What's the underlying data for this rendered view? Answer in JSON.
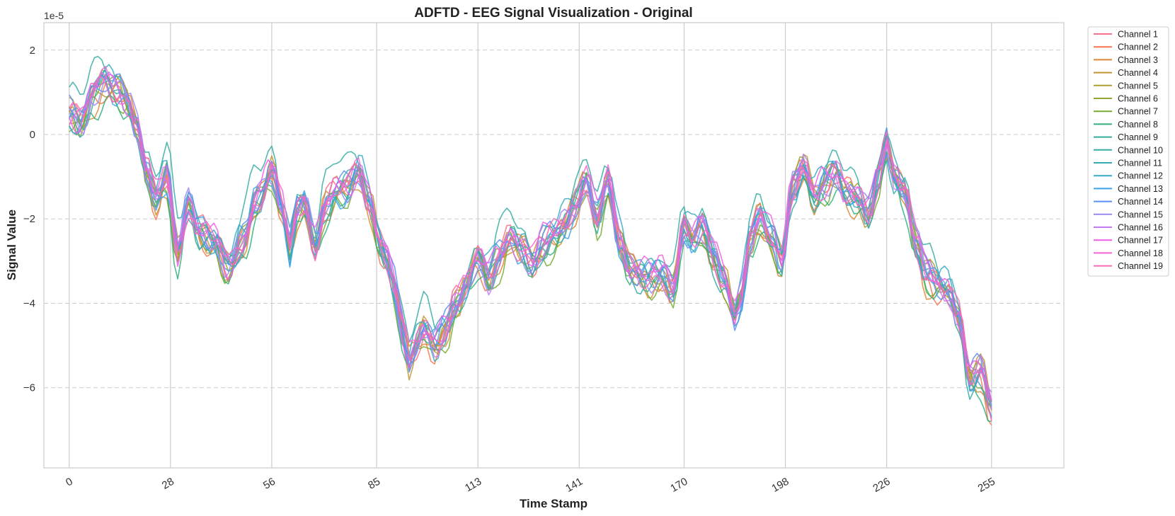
{
  "chart_data": {
    "type": "line",
    "title": "ADFTD - EEG Signal Visualization - Original",
    "xlabel": "Time Stamp",
    "ylabel": "Signal Value",
    "y_offset_label": "1e-5",
    "xlim": [
      -7,
      275
    ],
    "ylim": [
      -7.9,
      2.65
    ],
    "x_ticks": [
      0,
      28,
      56,
      85,
      113,
      141,
      170,
      198,
      226,
      255
    ],
    "x_tick_labels": [
      "0",
      "28",
      "56",
      "85",
      "113",
      "141",
      "170",
      "198",
      "226",
      "255"
    ],
    "y_ticks": [
      2,
      0,
      -2,
      -4,
      -6
    ],
    "y_tick_labels": [
      "2",
      "0",
      "−2",
      "−4",
      "−6"
    ],
    "grid": {
      "x": "solid",
      "y": "dashed"
    },
    "legend_position": "outside-top-right",
    "base_signal": {
      "x": [
        0,
        3,
        7,
        10,
        13,
        16,
        19,
        21,
        24,
        27,
        30,
        33,
        36,
        40,
        44,
        48,
        52,
        56,
        59,
        61,
        63,
        65,
        68,
        71,
        74,
        77,
        80,
        83,
        86,
        88,
        90,
        92,
        94,
        96,
        98,
        101,
        104,
        107,
        110,
        113,
        116,
        119,
        122,
        125,
        128,
        131,
        134,
        137,
        140,
        143,
        146,
        149,
        152,
        155,
        158,
        161,
        164,
        167,
        170,
        172,
        175,
        178,
        181,
        184,
        186,
        188,
        191,
        194,
        197,
        200,
        203,
        206,
        209,
        212,
        215,
        218,
        221,
        224,
        226,
        228,
        231,
        234,
        237,
        240,
        243,
        246,
        249,
        252,
        255
      ],
      "y": [
        0.5,
        0.3,
        1.0,
        1.3,
        1.1,
        0.8,
        0.2,
        -0.8,
        -1.5,
        -1.0,
        -2.8,
        -1.6,
        -2.3,
        -2.5,
        -3.2,
        -2.5,
        -1.5,
        -0.9,
        -1.8,
        -2.7,
        -1.8,
        -1.6,
        -2.6,
        -1.7,
        -1.3,
        -1.3,
        -0.9,
        -1.6,
        -2.6,
        -2.9,
        -3.6,
        -4.6,
        -5.4,
        -5.0,
        -4.7,
        -5.0,
        -4.6,
        -4.0,
        -3.5,
        -3.0,
        -3.4,
        -2.9,
        -2.4,
        -2.7,
        -3.1,
        -2.6,
        -2.4,
        -2.1,
        -1.7,
        -1.1,
        -2.0,
        -1.1,
        -2.5,
        -3.2,
        -3.3,
        -3.4,
        -3.3,
        -3.7,
        -2.2,
        -2.5,
        -2.2,
        -2.8,
        -3.4,
        -4.3,
        -3.8,
        -2.6,
        -2.0,
        -2.4,
        -3.0,
        -1.2,
        -0.8,
        -1.5,
        -1.2,
        -0.9,
        -1.3,
        -1.5,
        -1.9,
        -1.0,
        -0.2,
        -0.9,
        -1.3,
        -2.5,
        -3.3,
        -3.6,
        -3.7,
        -4.3,
        -5.7,
        -5.6,
        -6.5
      ]
    },
    "series": [
      {
        "name": "Channel 1",
        "color": "#f77189",
        "amp": 0.35,
        "phase": 0.0,
        "freq": 0.37,
        "offset": 0.05
      },
      {
        "name": "Channel 2",
        "color": "#f7754f",
        "amp": 0.3,
        "phase": 1.1,
        "freq": 0.41,
        "offset": -0.15
      },
      {
        "name": "Channel 3",
        "color": "#dc8932",
        "amp": 0.4,
        "phase": 2.3,
        "freq": 0.33,
        "offset": -0.2
      },
      {
        "name": "Channel 4",
        "color": "#c39532",
        "amp": 0.45,
        "phase": 0.7,
        "freq": 0.45,
        "offset": 0.0
      },
      {
        "name": "Channel 5",
        "color": "#ae9d31",
        "amp": 0.3,
        "phase": 3.1,
        "freq": 0.39,
        "offset": 0.1
      },
      {
        "name": "Channel 6",
        "color": "#97a431",
        "amp": 0.28,
        "phase": 4.0,
        "freq": 0.36,
        "offset": 0.0
      },
      {
        "name": "Channel 7",
        "color": "#77ab31",
        "amp": 0.32,
        "phase": 5.2,
        "freq": 0.42,
        "offset": -0.25
      },
      {
        "name": "Channel 8",
        "color": "#33b07a",
        "amp": 0.35,
        "phase": 1.8,
        "freq": 0.31,
        "offset": -0.35
      },
      {
        "name": "Channel 9",
        "color": "#35ad9c",
        "amp": 0.3,
        "phase": 2.9,
        "freq": 0.44,
        "offset": -0.1
      },
      {
        "name": "Channel 10",
        "color": "#36ada4",
        "amp": 0.9,
        "phase": 0.4,
        "freq": 0.27,
        "offset": 0.35
      },
      {
        "name": "Channel 11",
        "color": "#37abb4",
        "amp": 0.4,
        "phase": 3.6,
        "freq": 0.38,
        "offset": 0.05
      },
      {
        "name": "Channel 12",
        "color": "#38a9c5",
        "amp": 0.45,
        "phase": 4.7,
        "freq": 0.35,
        "offset": 0.2
      },
      {
        "name": "Channel 13",
        "color": "#3ba3ec",
        "amp": 0.38,
        "phase": 5.9,
        "freq": 0.4,
        "offset": -0.05
      },
      {
        "name": "Channel 14",
        "color": "#5b8ff4",
        "amp": 0.33,
        "phase": 0.9,
        "freq": 0.43,
        "offset": 0.1
      },
      {
        "name": "Channel 15",
        "color": "#9b88f4",
        "amp": 0.3,
        "phase": 2.0,
        "freq": 0.37,
        "offset": 0.05
      },
      {
        "name": "Channel 16",
        "color": "#c27af3",
        "amp": 0.34,
        "phase": 3.3,
        "freq": 0.39,
        "offset": 0.0
      },
      {
        "name": "Channel 17",
        "color": "#f05de7",
        "amp": 0.3,
        "phase": 4.4,
        "freq": 0.41,
        "offset": 0.15
      },
      {
        "name": "Channel 18",
        "color": "#f564d4",
        "amp": 0.32,
        "phase": 5.5,
        "freq": 0.36,
        "offset": 0.1
      },
      {
        "name": "Channel 19",
        "color": "#f66bb5",
        "amp": 0.35,
        "phase": 0.2,
        "freq": 0.34,
        "offset": 0.0
      }
    ]
  }
}
